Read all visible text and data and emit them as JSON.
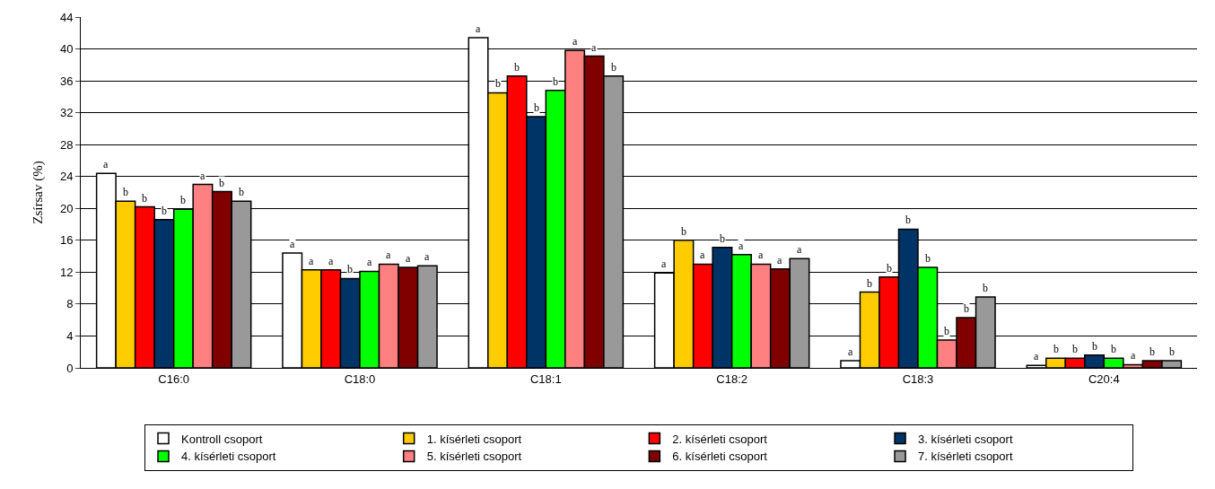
{
  "chart_data": {
    "type": "bar",
    "ylabel": "Zsírsav (%)",
    "categories": [
      "C16:0",
      "C18:0",
      "C18:1",
      "C18:2",
      "C18:3",
      "C20:4"
    ],
    "series": [
      {
        "name": "Kontroll csoport",
        "color": "#ffffff",
        "values": [
          24.4,
          14.4,
          41.4,
          11.9,
          0.9,
          0.3
        ],
        "value_labels": [
          "a",
          "a",
          "a",
          "a",
          "a",
          "a"
        ]
      },
      {
        "name": "1. kísérleti csoport",
        "color": "#ffcc00",
        "values": [
          20.9,
          12.3,
          34.5,
          16.0,
          9.5,
          1.2
        ],
        "value_labels": [
          "b",
          "a",
          "b",
          "b",
          "b",
          "b"
        ]
      },
      {
        "name": "2. kísérleti csoport",
        "color": "#ff0000",
        "values": [
          20.2,
          12.3,
          36.6,
          13.0,
          11.4,
          1.2
        ],
        "value_labels": [
          "b",
          "a",
          "b",
          "a",
          "b",
          "b"
        ]
      },
      {
        "name": "3. kísérleti csoport",
        "color": "#003366",
        "values": [
          18.6,
          11.2,
          31.5,
          15.1,
          17.4,
          1.6
        ],
        "value_labels": [
          "b",
          "b",
          "b",
          "b",
          "b",
          "b"
        ]
      },
      {
        "name": "4. kísérleti csoport",
        "color": "#00ff00",
        "values": [
          19.9,
          12.1,
          34.8,
          14.2,
          12.6,
          1.2
        ],
        "value_labels": [
          "b",
          "a",
          "b",
          "a",
          "b",
          "b"
        ]
      },
      {
        "name": "5. kísérleti csoport",
        "color": "#ff8080",
        "values": [
          23.0,
          13.0,
          39.8,
          13.0,
          3.5,
          0.4
        ],
        "value_labels": [
          "a",
          "a",
          "a",
          "a",
          "b",
          "a"
        ]
      },
      {
        "name": "6. kísérleti csoport",
        "color": "#800000",
        "values": [
          22.1,
          12.6,
          39.1,
          12.4,
          6.3,
          0.9
        ],
        "value_labels": [
          "b",
          "a",
          "a",
          "a",
          "b",
          "b"
        ]
      },
      {
        "name": "7. kísérleti csoport",
        "color": "#999999",
        "values": [
          20.9,
          12.8,
          36.6,
          13.7,
          8.9,
          0.9
        ],
        "value_labels": [
          "b",
          "a",
          "b",
          "a",
          "b",
          "b"
        ]
      }
    ],
    "ylim": [
      0,
      44
    ],
    "yticks": [
      0,
      4,
      8,
      12,
      16,
      20,
      24,
      28,
      32,
      36,
      40,
      44
    ],
    "grid": "y",
    "legend": "bottom"
  }
}
